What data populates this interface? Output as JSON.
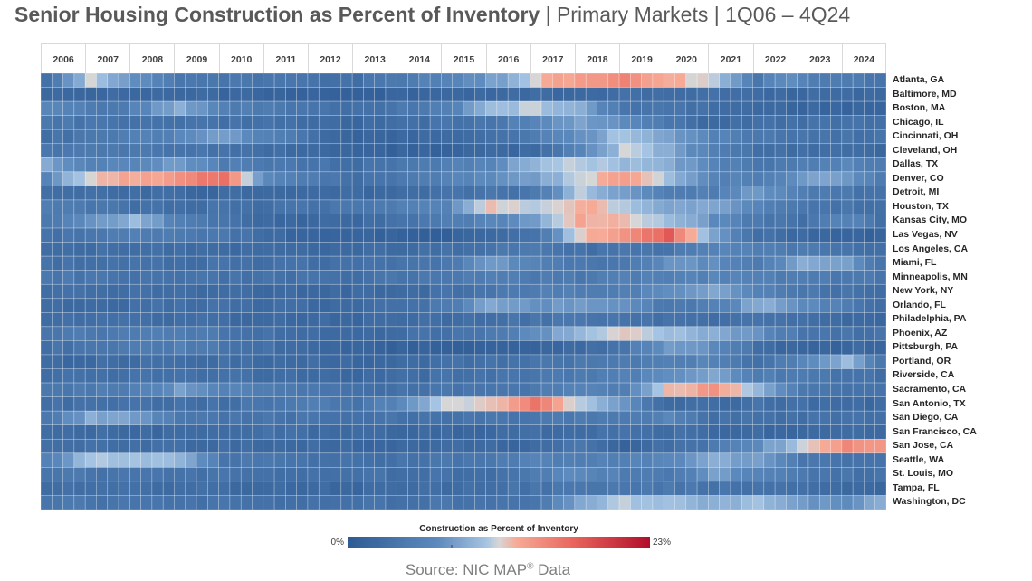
{
  "title": {
    "bold": "Senior Housing Construction as Percent of Inventory",
    "rest": " | Primary Markets | 1Q06 – 4Q24"
  },
  "legend": {
    "title": "Construction as Percent of Inventory",
    "min": "0%",
    "max": "23%"
  },
  "source": {
    "text": "Source: NIC MAP",
    "mark": "®",
    "suffix": " Data"
  },
  "colors": {
    "low": "#2e5b94",
    "mid": "#c6d4e2",
    "high_mid": "#f69886",
    "high": "#b20f2b"
  },
  "chart_data": {
    "type": "heatmap",
    "title": "Senior Housing Construction as Percent of Inventory | Primary Markets | 1Q06 – 4Q24",
    "x_years": [
      "2006",
      "2007",
      "2008",
      "2009",
      "2010",
      "2011",
      "2012",
      "2013",
      "2014",
      "2015",
      "2016",
      "2017",
      "2018",
      "2019",
      "2020",
      "2021",
      "2022",
      "2023",
      "2024"
    ],
    "quarters_per_year": 4,
    "value_range": [
      0,
      23
    ],
    "value_unit": "%",
    "markets": [
      "Atlanta, GA",
      "Baltimore, MD",
      "Boston, MA",
      "Chicago, IL",
      "Cincinnati, OH",
      "Cleveland, OH",
      "Dallas, TX",
      "Denver, CO",
      "Detroit, MI",
      "Houston, TX",
      "Kansas City, MO",
      "Las Vegas, NV",
      "Los Angeles, CA",
      "Miami, FL",
      "Minneapolis, MN",
      "New York, NY",
      "Orlando, FL",
      "Philadelphia, PA",
      "Phoenix, AZ",
      "Pittsburgh, PA",
      "Portland, OR",
      "Riverside, CA",
      "Sacramento, CA",
      "San Antonio, TX",
      "San Diego, CA",
      "San Francisco, CA",
      "San Jose, CA",
      "Seattle, WA",
      "St. Louis, MO",
      "Tampa, FL",
      "Washington, DC"
    ],
    "keypoints": [
      [
        [
          0,
          3
        ],
        [
          4,
          11
        ],
        [
          12,
          4
        ],
        [
          28,
          3
        ],
        [
          36,
          6
        ],
        [
          42,
          9
        ],
        [
          44,
          12
        ],
        [
          48,
          14
        ],
        [
          52,
          15
        ],
        [
          56,
          13
        ],
        [
          60,
          11
        ],
        [
          62,
          8
        ],
        [
          64,
          4
        ],
        [
          66,
          7
        ],
        [
          70,
          5
        ],
        [
          75,
          4
        ]
      ],
      [
        [
          0,
          2
        ],
        [
          12,
          2
        ],
        [
          28,
          1
        ],
        [
          40,
          2
        ],
        [
          60,
          3
        ],
        [
          64,
          2
        ],
        [
          75,
          2
        ]
      ],
      [
        [
          0,
          6
        ],
        [
          6,
          4
        ],
        [
          12,
          9
        ],
        [
          16,
          5
        ],
        [
          28,
          3
        ],
        [
          36,
          5
        ],
        [
          40,
          10
        ],
        [
          44,
          11
        ],
        [
          48,
          9
        ],
        [
          52,
          4
        ],
        [
          60,
          3
        ],
        [
          66,
          2
        ],
        [
          75,
          1
        ]
      ],
      [
        [
          0,
          4
        ],
        [
          20,
          3
        ],
        [
          28,
          2
        ],
        [
          40,
          4
        ],
        [
          48,
          8
        ],
        [
          52,
          7
        ],
        [
          56,
          4
        ],
        [
          60,
          2
        ],
        [
          64,
          3
        ],
        [
          75,
          3
        ]
      ],
      [
        [
          0,
          3
        ],
        [
          12,
          6
        ],
        [
          16,
          8
        ],
        [
          24,
          3
        ],
        [
          28,
          1
        ],
        [
          40,
          3
        ],
        [
          48,
          7
        ],
        [
          52,
          11
        ],
        [
          56,
          8
        ],
        [
          60,
          6
        ],
        [
          64,
          4
        ],
        [
          75,
          3
        ]
      ],
      [
        [
          0,
          4
        ],
        [
          12,
          4
        ],
        [
          24,
          2
        ],
        [
          28,
          1
        ],
        [
          44,
          2
        ],
        [
          48,
          6
        ],
        [
          52,
          11
        ],
        [
          56,
          9
        ],
        [
          60,
          5
        ],
        [
          64,
          3
        ],
        [
          75,
          2
        ]
      ],
      [
        [
          0,
          9
        ],
        [
          4,
          5
        ],
        [
          12,
          8
        ],
        [
          16,
          5
        ],
        [
          28,
          3
        ],
        [
          40,
          6
        ],
        [
          44,
          10
        ],
        [
          48,
          11
        ],
        [
          52,
          10
        ],
        [
          56,
          9
        ],
        [
          60,
          6
        ],
        [
          64,
          4
        ],
        [
          72,
          6
        ],
        [
          75,
          5
        ]
      ],
      [
        [
          0,
          6
        ],
        [
          4,
          12
        ],
        [
          12,
          14
        ],
        [
          16,
          17
        ],
        [
          20,
          6
        ],
        [
          28,
          3
        ],
        [
          44,
          8
        ],
        [
          48,
          11
        ],
        [
          52,
          14
        ],
        [
          56,
          10
        ],
        [
          60,
          6
        ],
        [
          64,
          5
        ],
        [
          70,
          9
        ],
        [
          75,
          5
        ]
      ],
      [
        [
          0,
          3
        ],
        [
          16,
          2
        ],
        [
          28,
          2
        ],
        [
          44,
          4
        ],
        [
          48,
          11
        ],
        [
          52,
          8
        ],
        [
          56,
          5
        ],
        [
          60,
          5
        ],
        [
          64,
          8
        ],
        [
          68,
          5
        ],
        [
          75,
          3
        ]
      ],
      [
        [
          0,
          5
        ],
        [
          8,
          3
        ],
        [
          20,
          3
        ],
        [
          28,
          4
        ],
        [
          36,
          6
        ],
        [
          40,
          12
        ],
        [
          44,
          11
        ],
        [
          48,
          13
        ],
        [
          52,
          11
        ],
        [
          56,
          8
        ],
        [
          60,
          9
        ],
        [
          64,
          6
        ],
        [
          68,
          4
        ],
        [
          75,
          3
        ]
      ],
      [
        [
          0,
          4
        ],
        [
          8,
          10
        ],
        [
          12,
          5
        ],
        [
          20,
          2
        ],
        [
          28,
          2
        ],
        [
          40,
          6
        ],
        [
          44,
          8
        ],
        [
          48,
          13
        ],
        [
          52,
          12
        ],
        [
          56,
          10
        ],
        [
          60,
          7
        ],
        [
          64,
          4
        ],
        [
          68,
          3
        ],
        [
          72,
          6
        ],
        [
          75,
          3
        ]
      ],
      [
        [
          0,
          3
        ],
        [
          8,
          5
        ],
        [
          16,
          4
        ],
        [
          24,
          1
        ],
        [
          36,
          1
        ],
        [
          44,
          3
        ],
        [
          48,
          12
        ],
        [
          52,
          14
        ],
        [
          54,
          16
        ],
        [
          56,
          18
        ],
        [
          60,
          8
        ],
        [
          64,
          3
        ],
        [
          68,
          2
        ],
        [
          75,
          1
        ]
      ],
      [
        [
          0,
          3
        ],
        [
          20,
          2
        ],
        [
          28,
          2
        ],
        [
          44,
          4
        ],
        [
          48,
          3
        ],
        [
          56,
          4
        ],
        [
          60,
          6
        ],
        [
          64,
          5
        ],
        [
          75,
          3
        ]
      ],
      [
        [
          0,
          3
        ],
        [
          20,
          3
        ],
        [
          28,
          3
        ],
        [
          36,
          4
        ],
        [
          40,
          8
        ],
        [
          44,
          6
        ],
        [
          48,
          4
        ],
        [
          52,
          4
        ],
        [
          56,
          7
        ],
        [
          60,
          7
        ],
        [
          64,
          5
        ],
        [
          68,
          9
        ],
        [
          72,
          8
        ],
        [
          75,
          4
        ]
      ],
      [
        [
          0,
          4
        ],
        [
          24,
          3
        ],
        [
          28,
          3
        ],
        [
          40,
          5
        ],
        [
          48,
          4
        ],
        [
          52,
          5
        ],
        [
          56,
          5
        ],
        [
          60,
          6
        ],
        [
          64,
          5
        ],
        [
          75,
          4
        ]
      ],
      [
        [
          0,
          3
        ],
        [
          24,
          2
        ],
        [
          32,
          2
        ],
        [
          44,
          5
        ],
        [
          52,
          5
        ],
        [
          56,
          7
        ],
        [
          60,
          9
        ],
        [
          64,
          6
        ],
        [
          68,
          4
        ],
        [
          75,
          3
        ]
      ],
      [
        [
          0,
          2
        ],
        [
          12,
          3
        ],
        [
          28,
          2
        ],
        [
          36,
          4
        ],
        [
          40,
          9
        ],
        [
          44,
          7
        ],
        [
          48,
          8
        ],
        [
          52,
          7
        ],
        [
          56,
          4
        ],
        [
          60,
          5
        ],
        [
          64,
          9
        ],
        [
          68,
          7
        ],
        [
          70,
          6
        ],
        [
          75,
          3
        ]
      ],
      [
        [
          0,
          3
        ],
        [
          28,
          2
        ],
        [
          40,
          3
        ],
        [
          48,
          4
        ],
        [
          56,
          3
        ],
        [
          64,
          3
        ],
        [
          75,
          2
        ]
      ],
      [
        [
          0,
          4
        ],
        [
          12,
          5
        ],
        [
          20,
          3
        ],
        [
          28,
          2
        ],
        [
          40,
          4
        ],
        [
          48,
          10
        ],
        [
          52,
          12
        ],
        [
          56,
          10
        ],
        [
          60,
          9
        ],
        [
          64,
          7
        ],
        [
          68,
          4
        ],
        [
          75,
          3
        ]
      ],
      [
        [
          0,
          3
        ],
        [
          12,
          5
        ],
        [
          24,
          2
        ],
        [
          28,
          1
        ],
        [
          40,
          1
        ],
        [
          48,
          2
        ],
        [
          52,
          4
        ],
        [
          56,
          8
        ],
        [
          60,
          7
        ],
        [
          64,
          3
        ],
        [
          68,
          1
        ],
        [
          75,
          2
        ]
      ],
      [
        [
          0,
          2
        ],
        [
          12,
          3
        ],
        [
          28,
          2
        ],
        [
          40,
          3
        ],
        [
          48,
          4
        ],
        [
          56,
          5
        ],
        [
          60,
          6
        ],
        [
          64,
          3
        ],
        [
          68,
          6
        ],
        [
          72,
          10
        ],
        [
          75,
          4
        ]
      ],
      [
        [
          0,
          3
        ],
        [
          16,
          3
        ],
        [
          28,
          2
        ],
        [
          44,
          4
        ],
        [
          48,
          4
        ],
        [
          52,
          5
        ],
        [
          56,
          7
        ],
        [
          60,
          9
        ],
        [
          64,
          5
        ],
        [
          75,
          3
        ]
      ],
      [
        [
          0,
          4
        ],
        [
          8,
          5
        ],
        [
          12,
          8
        ],
        [
          16,
          6
        ],
        [
          28,
          3
        ],
        [
          44,
          4
        ],
        [
          48,
          6
        ],
        [
          52,
          5
        ],
        [
          56,
          12
        ],
        [
          60,
          14
        ],
        [
          64,
          10
        ],
        [
          68,
          4
        ],
        [
          75,
          3
        ]
      ],
      [
        [
          0,
          3
        ],
        [
          16,
          3
        ],
        [
          24,
          5
        ],
        [
          28,
          3
        ],
        [
          36,
          11
        ],
        [
          40,
          12
        ],
        [
          44,
          16
        ],
        [
          48,
          11
        ],
        [
          52,
          7
        ],
        [
          56,
          2
        ],
        [
          64,
          3
        ],
        [
          75,
          2
        ]
      ],
      [
        [
          0,
          4
        ],
        [
          4,
          9
        ],
        [
          8,
          8
        ],
        [
          12,
          4
        ],
        [
          28,
          3
        ],
        [
          44,
          4
        ],
        [
          52,
          4
        ],
        [
          56,
          6
        ],
        [
          60,
          3
        ],
        [
          75,
          3
        ]
      ],
      [
        [
          0,
          3
        ],
        [
          8,
          2
        ],
        [
          20,
          3
        ],
        [
          28,
          2
        ],
        [
          40,
          2
        ],
        [
          48,
          3
        ],
        [
          56,
          3
        ],
        [
          64,
          2
        ],
        [
          75,
          2
        ]
      ],
      [
        [
          0,
          3
        ],
        [
          28,
          2
        ],
        [
          44,
          2
        ],
        [
          48,
          4
        ],
        [
          52,
          1
        ],
        [
          56,
          3
        ],
        [
          60,
          4
        ],
        [
          64,
          7
        ],
        [
          68,
          11
        ],
        [
          72,
          15
        ],
        [
          75,
          14
        ]
      ],
      [
        [
          0,
          5
        ],
        [
          4,
          11
        ],
        [
          12,
          10
        ],
        [
          16,
          4
        ],
        [
          28,
          3
        ],
        [
          40,
          4
        ],
        [
          44,
          6
        ],
        [
          48,
          5
        ],
        [
          56,
          6
        ],
        [
          60,
          9
        ],
        [
          64,
          8
        ],
        [
          68,
          4
        ],
        [
          75,
          3
        ]
      ],
      [
        [
          0,
          4
        ],
        [
          20,
          3
        ],
        [
          28,
          3
        ],
        [
          40,
          3
        ],
        [
          44,
          5
        ],
        [
          48,
          7
        ],
        [
          52,
          5
        ],
        [
          56,
          4
        ],
        [
          60,
          8
        ],
        [
          64,
          6
        ],
        [
          68,
          4
        ],
        [
          75,
          3
        ]
      ],
      [
        [
          0,
          3
        ],
        [
          28,
          2
        ],
        [
          40,
          3
        ],
        [
          48,
          4
        ],
        [
          56,
          4
        ],
        [
          64,
          3
        ],
        [
          75,
          2
        ]
      ],
      [
        [
          0,
          4
        ],
        [
          20,
          3
        ],
        [
          28,
          3
        ],
        [
          44,
          4
        ],
        [
          48,
          9
        ],
        [
          52,
          11
        ],
        [
          56,
          10
        ],
        [
          60,
          9
        ],
        [
          64,
          10
        ],
        [
          68,
          8
        ],
        [
          72,
          7
        ],
        [
          75,
          9
        ]
      ]
    ]
  }
}
